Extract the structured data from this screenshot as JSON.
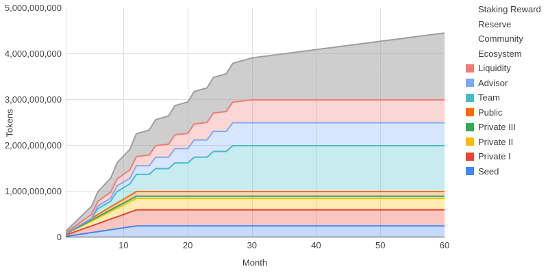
{
  "chart_data": {
    "type": "area",
    "stacked": true,
    "title": "",
    "xlabel": "Month",
    "ylabel": "Tokens",
    "value_unit": "tokens",
    "value_scale": "millions_of_tokens",
    "x": {
      "min": 1,
      "max": 60,
      "ticks": [
        10,
        20,
        30,
        40,
        50,
        60
      ]
    },
    "y": {
      "min": 0,
      "max": 5000,
      "tick_labels": [
        "0",
        "1,000,000,000",
        "2,000,000,000",
        "3,000,000,000",
        "4,000,000,000",
        "5,000,000,000"
      ]
    },
    "grid": {
      "horizontal": true,
      "vertical": true,
      "color": "#e0e0e0",
      "baseline_color": "#333333"
    },
    "series": [
      {
        "name": "Seed",
        "color": "#4285f4",
        "fill_opacity": 0.3,
        "stroke": true,
        "points": [
          [
            1,
            21
          ],
          [
            12,
            250
          ],
          [
            60,
            250
          ]
        ]
      },
      {
        "name": "Private I",
        "color": "#ea4335",
        "fill_opacity": 0.3,
        "stroke": true,
        "points": [
          [
            1,
            29
          ],
          [
            12,
            350
          ],
          [
            60,
            350
          ]
        ]
      },
      {
        "name": "Private II",
        "color": "#fbbc04",
        "fill_opacity": 0.3,
        "stroke": true,
        "points": [
          [
            1,
            21
          ],
          [
            12,
            250
          ],
          [
            60,
            250
          ]
        ]
      },
      {
        "name": "Private III",
        "color": "#34a853",
        "fill_opacity": 0.3,
        "stroke": true,
        "points": [
          [
            1,
            4
          ],
          [
            12,
            50
          ],
          [
            60,
            50
          ]
        ]
      },
      {
        "name": "Public",
        "color": "#ff6d01",
        "fill_opacity": 0.3,
        "stroke": true,
        "points": [
          [
            1,
            8
          ],
          [
            12,
            100
          ],
          [
            60,
            100
          ]
        ]
      },
      {
        "name": "Team",
        "color": "#46bdc6",
        "fill_opacity": 0.3,
        "stroke": true,
        "points": [
          [
            1,
            0
          ],
          [
            5,
            0
          ],
          [
            6,
            125
          ],
          [
            8,
            125
          ],
          [
            9,
            250
          ],
          [
            11,
            250
          ],
          [
            12,
            375
          ],
          [
            14,
            375
          ],
          [
            15,
            500
          ],
          [
            17,
            500
          ],
          [
            18,
            625
          ],
          [
            20,
            625
          ],
          [
            21,
            750
          ],
          [
            23,
            750
          ],
          [
            24,
            875
          ],
          [
            26,
            875
          ],
          [
            27,
            1000
          ],
          [
            60,
            1000
          ]
        ]
      },
      {
        "name": "Advisor",
        "color": "#7baaf7",
        "fill_opacity": 0.3,
        "stroke": true,
        "points": [
          [
            1,
            0
          ],
          [
            5,
            0
          ],
          [
            6,
            62
          ],
          [
            8,
            62
          ],
          [
            9,
            125
          ],
          [
            11,
            125
          ],
          [
            12,
            188
          ],
          [
            14,
            188
          ],
          [
            15,
            250
          ],
          [
            17,
            250
          ],
          [
            18,
            312
          ],
          [
            20,
            312
          ],
          [
            21,
            375
          ],
          [
            23,
            375
          ],
          [
            24,
            438
          ],
          [
            26,
            438
          ],
          [
            27,
            500
          ],
          [
            60,
            500
          ]
        ]
      },
      {
        "name": "Liquidity",
        "color": "#f07b72",
        "fill_opacity": 0.3,
        "stroke": true,
        "points": [
          [
            1,
            17
          ],
          [
            30,
            500
          ],
          [
            60,
            500
          ]
        ]
      },
      {
        "name": "Ecosystem",
        "color": "#9e9e9e",
        "fill_opacity": 0.5,
        "stroke": false,
        "points": [
          [
            1,
            25
          ],
          [
            12,
            300
          ],
          [
            60,
            300
          ]
        ]
      },
      {
        "name": "Community",
        "color": "#9e9e9e",
        "fill_opacity": 0.5,
        "stroke": false,
        "points": [
          [
            1,
            5
          ],
          [
            30,
            150
          ],
          [
            60,
            150
          ]
        ]
      },
      {
        "name": "Reserve",
        "color": "#9e9e9e",
        "fill_opacity": 0.5,
        "stroke": false,
        "points": [
          [
            1,
            5
          ],
          [
            60,
            300
          ]
        ]
      },
      {
        "name": "Staking Reward",
        "color": "#9e9e9e",
        "fill_opacity": 0.5,
        "stroke": true,
        "points": [
          [
            1,
            0
          ],
          [
            6,
            0
          ],
          [
            60,
            710
          ]
        ]
      }
    ],
    "legend": {
      "position": "right",
      "items": [
        {
          "label": "Staking Reward",
          "color": ""
        },
        {
          "label": "Reserve",
          "color": ""
        },
        {
          "label": "Community",
          "color": ""
        },
        {
          "label": "Ecosystem",
          "color": ""
        },
        {
          "label": "Liquidity",
          "color": "#f07b72"
        },
        {
          "label": "Advisor",
          "color": "#7baaf7"
        },
        {
          "label": "Team",
          "color": "#46bdc6"
        },
        {
          "label": "Public",
          "color": "#ff6d01"
        },
        {
          "label": "Private III",
          "color": "#34a853"
        },
        {
          "label": "Private II",
          "color": "#fbbc04"
        },
        {
          "label": "Private I",
          "color": "#ea4335"
        },
        {
          "label": "Seed",
          "color": "#4285f4"
        }
      ]
    }
  },
  "style": {
    "background": "#ffffff",
    "grid_color": "#e0e0e0",
    "axis_line_color": "#333333",
    "tick_text_color": "#444444",
    "label_text_color": "#3c4043"
  }
}
